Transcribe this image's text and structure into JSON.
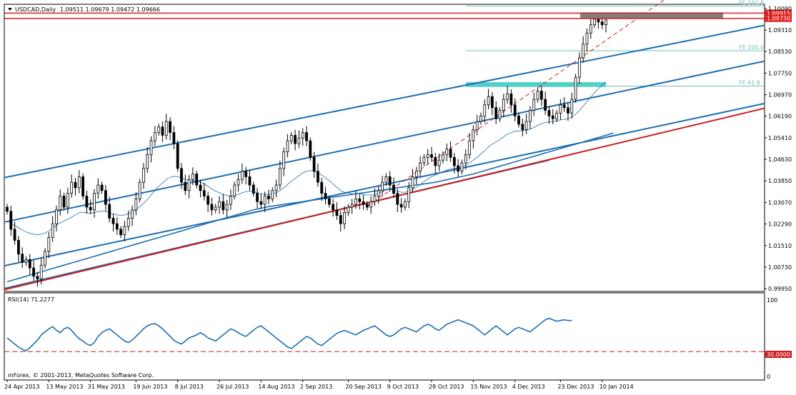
{
  "header": {
    "symbol": "USDCAD,Daily",
    "ohlc": "1.09511 1.09679 1.09472 1.09666"
  },
  "colors": {
    "candle": "#000000",
    "channel": "#1f6fb2",
    "ma": "#1f6fb2",
    "support": "#cc1f1f",
    "resistance": "#e01f1f",
    "fib": "#6fc3b1",
    "fib_box": "#4fd0c8",
    "gray_box": "#7f7f7f",
    "rsi": "#1f6fb2"
  },
  "chart_data": [
    {
      "type": "candlestick",
      "name": "price",
      "y_ticks": [
        "1.10090",
        "1.09310",
        "1.08530",
        "1.07750",
        "1.06970",
        "1.06190",
        "1.05410",
        "1.04630",
        "1.03850",
        "1.03070",
        "1.02290",
        "1.01510",
        "1.00730",
        "0.99950"
      ],
      "x_ticks": [
        "24 Apr 2013",
        "13 May 2013",
        "31 May 2013",
        "19 Jun 2013",
        "8 Jul 2013",
        "26 Jul 2013",
        "14 Aug 2013",
        "2 Sep 2013",
        "20 Sep 2013",
        "9 Oct 2013",
        "28 Oct 2013",
        "15 Nov 2013",
        "4 Dec 2013",
        "23 Dec 2013",
        "10 Jan 2014"
      ],
      "ylim": [
        0.9985,
        1.1024
      ],
      "price_labels": {
        "resistance_upper": "1.09915",
        "resistance_lower": "1.09730"
      },
      "fib_levels": [
        {
          "label": "FE 161.8",
          "value": 1.1018
        },
        {
          "label": "FE 100.0",
          "value": 1.0856
        },
        {
          "label": "FE 61.8",
          "value": 1.0728
        }
      ],
      "resistance_levels": [
        1.0992,
        1.0973
      ],
      "closes": [
        1.0275,
        1.021,
        1.017,
        1.012,
        1.009,
        1.01,
        1.007,
        1.004,
        1.003,
        1.008,
        1.013,
        1.018,
        1.023,
        1.028,
        1.033,
        1.029,
        1.034,
        1.038,
        1.036,
        1.04,
        1.033,
        1.029,
        1.028,
        1.034,
        1.037,
        1.035,
        1.03,
        1.025,
        1.023,
        1.021,
        1.019,
        1.022,
        1.025,
        1.028,
        1.032,
        1.038,
        1.043,
        1.048,
        1.053,
        1.056,
        1.058,
        1.055,
        1.06,
        1.056,
        1.052,
        1.043,
        1.038,
        1.035,
        1.039,
        1.041,
        1.037,
        1.035,
        1.033,
        1.03,
        1.028,
        1.029,
        1.031,
        1.028,
        1.03,
        1.033,
        1.037,
        1.039,
        1.042,
        1.04,
        1.037,
        1.034,
        1.031,
        1.03,
        1.033,
        1.032,
        1.035,
        1.037,
        1.043,
        1.049,
        1.053,
        1.055,
        1.052,
        1.054,
        1.056,
        1.053,
        1.047,
        1.042,
        1.038,
        1.034,
        1.032,
        1.03,
        1.028,
        1.026,
        1.023,
        1.027,
        1.029,
        1.03,
        1.032,
        1.031,
        1.03,
        1.029,
        1.031,
        1.033,
        1.035,
        1.038,
        1.04,
        1.037,
        1.034,
        1.03,
        1.029,
        1.031,
        1.036,
        1.04,
        1.042,
        1.045,
        1.047,
        1.048,
        1.047,
        1.044,
        1.046,
        1.048,
        1.05,
        1.047,
        1.044,
        1.042,
        1.045,
        1.048,
        1.053,
        1.057,
        1.06,
        1.062,
        1.066,
        1.069,
        1.065,
        1.061,
        1.064,
        1.068,
        1.07,
        1.066,
        1.062,
        1.059,
        1.057,
        1.06,
        1.064,
        1.068,
        1.071,
        1.068,
        1.064,
        1.062,
        1.061,
        1.063,
        1.066,
        1.065,
        1.063,
        1.068,
        1.076,
        1.083,
        1.088,
        1.092,
        1.095,
        1.097,
        1.096,
        1.095,
        1.0967
      ],
      "ma_fast": [
        1.024,
        1.0232,
        1.0224,
        1.0216,
        1.0208,
        1.02,
        1.0195,
        1.0192,
        1.019,
        1.0192,
        1.0196,
        1.0204,
        1.0214,
        1.0224,
        1.0234,
        1.024,
        1.0246,
        1.0254,
        1.0262,
        1.027,
        1.0272,
        1.027,
        1.0268,
        1.027,
        1.0274,
        1.0276,
        1.0274,
        1.027,
        1.0266,
        1.0262,
        1.026,
        1.0262,
        1.0266,
        1.0272,
        1.028,
        1.0292,
        1.0304,
        1.0318,
        1.0334,
        1.035,
        1.0366,
        1.0378,
        1.039,
        1.0398,
        1.0402,
        1.04,
        1.0396,
        1.039,
        1.0388,
        1.0386,
        1.0384,
        1.038,
        1.0374,
        1.0366,
        1.0356,
        1.0348,
        1.0342,
        1.0336,
        1.0332,
        1.033,
        1.0332,
        1.0336,
        1.0342,
        1.0346,
        1.0348,
        1.0346,
        1.0342,
        1.0338,
        1.0336,
        1.0336,
        1.0338,
        1.0342,
        1.035,
        1.036,
        1.0372,
        1.0384,
        1.0394,
        1.0404,
        1.0414,
        1.042,
        1.0422,
        1.042,
        1.0414,
        1.0406,
        1.0396,
        1.0386,
        1.0374,
        1.0362,
        1.035,
        1.0344,
        1.034,
        1.0338,
        1.0338,
        1.0338,
        1.0336,
        1.0334,
        1.0334,
        1.0336,
        1.034,
        1.0346,
        1.0352,
        1.0354,
        1.0352,
        1.0348,
        1.0344,
        1.0344,
        1.0348,
        1.0354,
        1.0362,
        1.0372,
        1.0382,
        1.0392,
        1.04,
        1.0406,
        1.0412,
        1.0418,
        1.0424,
        1.0428,
        1.043,
        1.0432,
        1.0436,
        1.0442,
        1.045,
        1.046,
        1.047,
        1.0482,
        1.0494,
        1.0508,
        1.0518,
        1.0526,
        1.0534,
        1.0544,
        1.0554,
        1.056,
        1.0564,
        1.0566,
        1.0566,
        1.0568,
        1.0572,
        1.0578,
        1.0586,
        1.0592,
        1.0596,
        1.0598,
        1.06,
        1.0602,
        1.0606,
        1.0608,
        1.061,
        1.0616,
        1.0626,
        1.064,
        1.0656,
        1.0672,
        1.0688,
        1.0704,
        1.0718,
        1.0732,
        1.0744
      ],
      "ma_slow": [
        1.002,
        1.0024,
        1.0028,
        1.0032,
        1.0036,
        1.004,
        1.0044,
        1.0048,
        1.0052,
        1.0056,
        1.006,
        1.0064,
        1.0068,
        1.0072,
        1.0076,
        1.008,
        1.0084,
        1.0088,
        1.0092,
        1.0096,
        1.01,
        1.0104,
        1.0108,
        1.0112,
        1.0116,
        1.012,
        1.0124,
        1.0128,
        1.0132,
        1.0136,
        1.014,
        1.0144,
        1.0148,
        1.0152,
        1.0156,
        1.016,
        1.0164,
        1.0168,
        1.0172,
        1.0176,
        1.018,
        1.0184,
        1.0188,
        1.0192,
        1.0196,
        1.02,
        1.0204,
        1.0208,
        1.0212,
        1.0216,
        1.022,
        1.0224,
        1.0228,
        1.0232,
        1.0236,
        1.024,
        1.0244,
        1.0248,
        1.0252,
        1.0256,
        1.026,
        1.0264,
        1.0268,
        1.0272,
        1.0276,
        1.028,
        1.0283,
        1.0286,
        1.0289,
        1.0292,
        1.0294,
        1.0296,
        1.0298,
        1.03,
        1.0302,
        1.0304,
        1.0306,
        1.0308,
        1.031,
        1.0312,
        1.0314,
        1.0316,
        1.0318,
        1.032,
        1.0322,
        1.0324,
        1.0326,
        1.0328,
        1.033,
        1.0332,
        1.0334,
        1.0336,
        1.0338,
        1.034,
        1.0342,
        1.0344,
        1.0346,
        1.0348,
        1.035,
        1.0352,
        1.0354,
        1.0356,
        1.0358,
        1.036,
        1.0362,
        1.0364,
        1.0366,
        1.0368,
        1.037,
        1.0372,
        1.0374,
        1.0376,
        1.0378,
        1.038,
        1.0383,
        1.0386,
        1.0389,
        1.0392,
        1.0395,
        1.0398,
        1.0401,
        1.0404,
        1.0407,
        1.041,
        1.0414,
        1.0418,
        1.0422,
        1.0426,
        1.043,
        1.0434,
        1.0438,
        1.0442,
        1.0446,
        1.045,
        1.0454,
        1.0458,
        1.0462,
        1.0466,
        1.047,
        1.0474,
        1.0478,
        1.0482,
        1.0486,
        1.049,
        1.0494,
        1.0498,
        1.0502,
        1.0506,
        1.051,
        1.0514,
        1.0518,
        1.0522,
        1.0526,
        1.053,
        1.0534,
        1.0538,
        1.0542,
        1.0546,
        1.055,
        1.0554,
        1.0558
      ],
      "channel_lines": [
        {
          "color": "channel",
          "from": [
            0,
            1.0399
          ],
          "to": [
            166,
            1.0855
          ]
        },
        {
          "color": "channel",
          "from": [
            0,
            1.0238
          ],
          "to": [
            166,
            1.072
          ]
        },
        {
          "color": "channel",
          "from": [
            0,
            1.008
          ],
          "to": [
            166,
            1.0566
          ]
        },
        {
          "color": "channel",
          "from": [
            0,
            0.9998
          ],
          "to": [
            143,
            1.046
          ]
        },
        {
          "color": "support",
          "from": [
            0,
            0.9994
          ],
          "to": [
            166,
            1.0537
          ]
        }
      ],
      "dashed_line": {
        "color": "support",
        "from": [
          95,
          1.0293
        ],
        "to": [
          166,
          1.097
        ]
      }
    },
    {
      "type": "line",
      "name": "RSI",
      "label": "RSI(14) 71.2277",
      "ylim": [
        0,
        100
      ],
      "y_ticks": [
        "100",
        "0"
      ],
      "level_label": "30.0000",
      "level": 30,
      "values": [
        48,
        44,
        40,
        36,
        33,
        31,
        35,
        40,
        45,
        52,
        56,
        60,
        63,
        58,
        55,
        60,
        62,
        58,
        52,
        47,
        44,
        40,
        38,
        42,
        50,
        55,
        58,
        60,
        56,
        52,
        48,
        44,
        42,
        45,
        50,
        55,
        60,
        64,
        66,
        67,
        64,
        60,
        55,
        50,
        45,
        42,
        40,
        44,
        48,
        50,
        52,
        55,
        52,
        48,
        46,
        44,
        48,
        52,
        56,
        60,
        58,
        55,
        52,
        50,
        54,
        58,
        62,
        64,
        60,
        56,
        52,
        48,
        44,
        40,
        36,
        34,
        38,
        42,
        46,
        50,
        48,
        44,
        40,
        38,
        42,
        46,
        50,
        54,
        56,
        58,
        56,
        54,
        52,
        55,
        58,
        60,
        62,
        64,
        60,
        56,
        52,
        50,
        52,
        56,
        60,
        62,
        60,
        58,
        56,
        60,
        64,
        66,
        64,
        60,
        58,
        62,
        66,
        68,
        70,
        72,
        70,
        68,
        66,
        64,
        60,
        56,
        52,
        56,
        60,
        64,
        60,
        56,
        52,
        56,
        60,
        62,
        60,
        58,
        56,
        60,
        64,
        68,
        72,
        74,
        72,
        70,
        71,
        72,
        71,
        71
      ]
    }
  ],
  "footer": {
    "copyright": "mForex, © 2001-2013, MetaQuotes Software Corp."
  }
}
